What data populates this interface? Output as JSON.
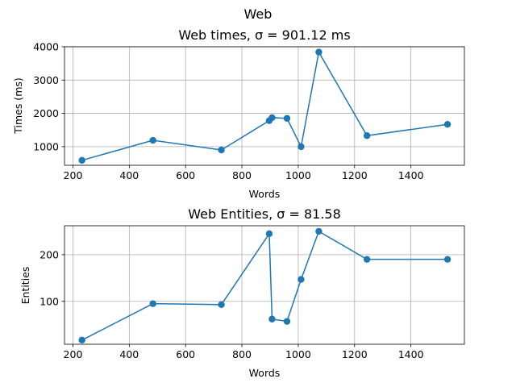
{
  "figure": {
    "suptitle": "Web"
  },
  "chart_data": [
    {
      "type": "line",
      "title": "Web times, σ = 901.12 ms",
      "xlabel": "Words",
      "ylabel": "Times (ms)",
      "xlim": [
        170,
        1590
      ],
      "ylim": [
        440,
        4000
      ],
      "xticks": [
        200,
        400,
        600,
        800,
        1000,
        1200,
        1400
      ],
      "yticks": [
        1000,
        2000,
        3000,
        4000
      ],
      "grid": true,
      "color": "#1f77b4",
      "marker": "circle",
      "series": [
        {
          "x": [
            232,
            484,
            727,
            897,
            907,
            960,
            1010,
            1073,
            1244,
            1530
          ],
          "y": [
            590,
            1190,
            900,
            1780,
            1870,
            1850,
            1000,
            3840,
            1330,
            1670
          ]
        }
      ]
    },
    {
      "type": "line",
      "title": "Web Entities, σ = 81.58",
      "xlabel": "Words",
      "ylabel": "Entities",
      "xlim": [
        170,
        1590
      ],
      "ylim": [
        8,
        262
      ],
      "xticks": [
        200,
        400,
        600,
        800,
        1000,
        1200,
        1400
      ],
      "yticks": [
        100,
        200
      ],
      "grid": true,
      "color": "#1f77b4",
      "marker": "circle",
      "series": [
        {
          "x": [
            232,
            484,
            727,
            897,
            907,
            960,
            1010,
            1073,
            1244,
            1530
          ],
          "y": [
            17,
            95,
            93,
            245,
            62,
            57,
            147,
            250,
            190,
            190
          ]
        }
      ]
    }
  ]
}
